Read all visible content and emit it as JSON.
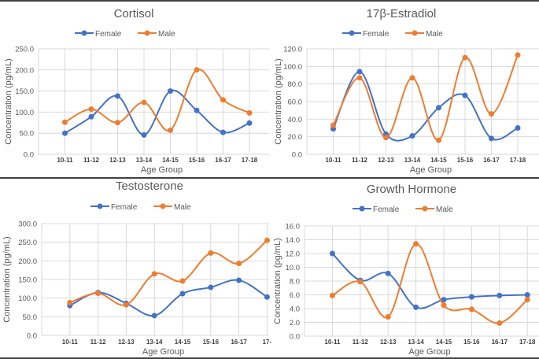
{
  "colors": {
    "female": "#4472C4",
    "male": "#ED7D31",
    "grid": "#D9D9D9",
    "text": "#595959",
    "divider": "#404040"
  },
  "chart_data": [
    {
      "type": "line",
      "smooth": true,
      "title": "Cortisol",
      "xlabel": "Age Group",
      "ylabel": "Concentration (pg/mL)",
      "ylim": [
        0,
        250
      ],
      "ystep": 50,
      "ytick_decimals": 1,
      "legend": "top",
      "grid": true,
      "categories": [
        "10-11",
        "11-12",
        "12-13",
        "13-14",
        "14-15",
        "15-16",
        "16-17",
        "17-18"
      ],
      "series": [
        {
          "name": "Female",
          "values": [
            50,
            89,
            138,
            46,
            150,
            104,
            52,
            74
          ]
        },
        {
          "name": "Male",
          "values": [
            76,
            107,
            75,
            123,
            57,
            200,
            129,
            98
          ]
        }
      ]
    },
    {
      "type": "line",
      "smooth": true,
      "title": "17β-Estradiol",
      "xlabel": "Age Group",
      "ylabel": "Concentration (pg/mL)",
      "ylim": [
        0,
        120
      ],
      "ystep": 20,
      "ytick_decimals": 1,
      "legend": "top",
      "grid": true,
      "categories": [
        "10-11",
        "11-12",
        "12-13",
        "13-14",
        "14-15",
        "15-16",
        "16-17",
        "17-18"
      ],
      "series": [
        {
          "name": "Female",
          "values": [
            29,
            94,
            23,
            21,
            53,
            67,
            18,
            30
          ]
        },
        {
          "name": "Male",
          "values": [
            33,
            87,
            19,
            87,
            16,
            110,
            46,
            113
          ]
        }
      ]
    },
    {
      "type": "line",
      "smooth": true,
      "title": "Testosterone",
      "xlabel": "Age Group",
      "ylabel": "Concentration (pg/mL)",
      "ylim": [
        0,
        300
      ],
      "ystep": 50,
      "ytick_decimals": 1,
      "legend": "top",
      "grid": true,
      "categories": [
        "10-11",
        "11-12",
        "12-13",
        "13-14",
        "14-15",
        "15-16",
        "16-17",
        "17-"
      ],
      "series": [
        {
          "name": "Female",
          "values": [
            80,
            115,
            86,
            53,
            112,
            129,
            148,
            103
          ]
        },
        {
          "name": "Male",
          "values": [
            88,
            113,
            82,
            165,
            146,
            221,
            193,
            255
          ]
        }
      ]
    },
    {
      "type": "line",
      "smooth": true,
      "title": "Growth Hormone",
      "xlabel": "Age Group",
      "ylabel": "Concentration (pg/mL)",
      "ylim": [
        0,
        16
      ],
      "ystep": 2,
      "ytick_decimals": 1,
      "legend": "top",
      "grid": true,
      "categories": [
        "10-11",
        "11-12",
        "12-13",
        "13-14",
        "14-15",
        "15-16",
        "16-17",
        "17-18"
      ],
      "series": [
        {
          "name": "Female",
          "values": [
            12.0,
            8.1,
            9.1,
            4.2,
            5.3,
            5.7,
            5.9,
            6.0
          ]
        },
        {
          "name": "Male",
          "values": [
            5.9,
            7.9,
            2.8,
            13.4,
            4.5,
            3.9,
            1.9,
            5.3
          ]
        }
      ]
    }
  ]
}
